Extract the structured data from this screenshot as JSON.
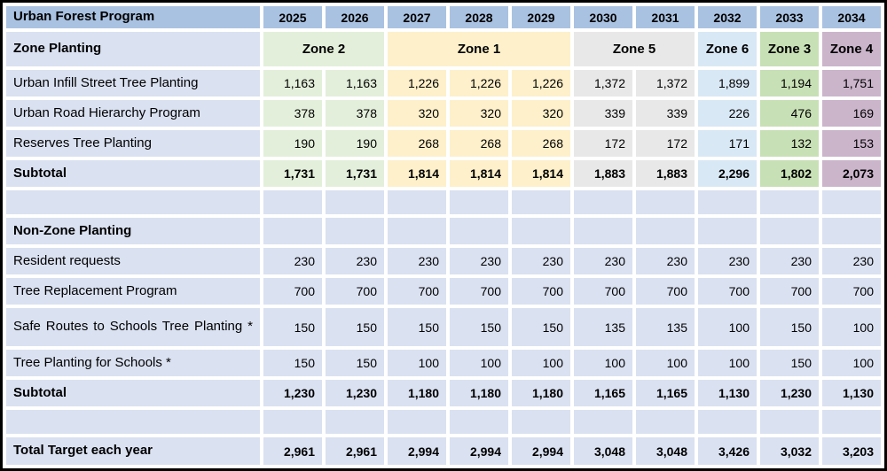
{
  "table": {
    "title": "Urban Forest Program",
    "years": [
      "2025",
      "2026",
      "2027",
      "2028",
      "2029",
      "2030",
      "2031",
      "2032",
      "2033",
      "2034"
    ],
    "zone_row_label": "Zone Planting",
    "zones": [
      {
        "name": "Zone 2",
        "span": 2,
        "color_key": "zone2"
      },
      {
        "name": "Zone 1",
        "span": 3,
        "color_key": "zone1"
      },
      {
        "name": "Zone 5",
        "span": 2,
        "color_key": "zone5"
      },
      {
        "name": "Zone 6",
        "span": 1,
        "color_key": "zone6"
      },
      {
        "name": "Zone 3",
        "span": 1,
        "color_key": "zone3"
      },
      {
        "name": "Zone 4",
        "span": 1,
        "color_key": "zone4"
      }
    ],
    "zone_section": {
      "rows": [
        {
          "label": "Urban Infill Street Tree Planting",
          "values": [
            "1,163",
            "1,163",
            "1,226",
            "1,226",
            "1,226",
            "1,372",
            "1,372",
            "1,899",
            "1,194",
            "1,751"
          ]
        },
        {
          "label": "Urban Road Hierarchy Program",
          "values": [
            "378",
            "378",
            "320",
            "320",
            "320",
            "339",
            "339",
            "226",
            "476",
            "169"
          ]
        },
        {
          "label": "Reserves Tree Planting",
          "values": [
            "190",
            "190",
            "268",
            "268",
            "268",
            "172",
            "172",
            "171",
            "132",
            "153"
          ]
        }
      ],
      "subtotal": {
        "label": "Subtotal",
        "values": [
          "1,731",
          "1,731",
          "1,814",
          "1,814",
          "1,814",
          "1,883",
          "1,883",
          "2,296",
          "1,802",
          "2,073"
        ]
      }
    },
    "non_zone_section": {
      "header": "Non-Zone Planting",
      "rows": [
        {
          "label": "Resident requests",
          "justify": false,
          "values": [
            "230",
            "230",
            "230",
            "230",
            "230",
            "230",
            "230",
            "230",
            "230",
            "230"
          ]
        },
        {
          "label": "Tree Replacement Program",
          "justify": false,
          "values": [
            "700",
            "700",
            "700",
            "700",
            "700",
            "700",
            "700",
            "700",
            "700",
            "700"
          ]
        },
        {
          "label": "Safe Routes to Schools Tree Planting *",
          "justify": true,
          "values": [
            "150",
            "150",
            "150",
            "150",
            "150",
            "135",
            "135",
            "100",
            "150",
            "100"
          ]
        },
        {
          "label": "Tree Planting for Schools *",
          "justify": false,
          "values": [
            "150",
            "150",
            "100",
            "100",
            "100",
            "100",
            "100",
            "100",
            "150",
            "100"
          ]
        }
      ],
      "subtotal": {
        "label": "Subtotal",
        "values": [
          "1,230",
          "1,230",
          "1,180",
          "1,180",
          "1,180",
          "1,165",
          "1,165",
          "1,130",
          "1,230",
          "1,130"
        ]
      }
    },
    "total_row": {
      "label": "Total Target each year",
      "values": [
        "2,961",
        "2,961",
        "2,994",
        "2,994",
        "2,994",
        "3,048",
        "3,048",
        "3,426",
        "3,032",
        "3,203"
      ]
    },
    "colors": {
      "outer_border": "#000000",
      "header_blue": "#a9c2e1",
      "row_lavender": "#dae1f1",
      "zone2_green": "#e3efda",
      "zone1_yellow": "#fdf0ca",
      "zone5_gray": "#e9e8e8",
      "zone6_blue": "#d9e8f5",
      "zone3_green": "#c8e0b5",
      "zone4_mauve": "#cbb5cb",
      "text": "#000000",
      "cell_gap": "#ffffff"
    }
  }
}
